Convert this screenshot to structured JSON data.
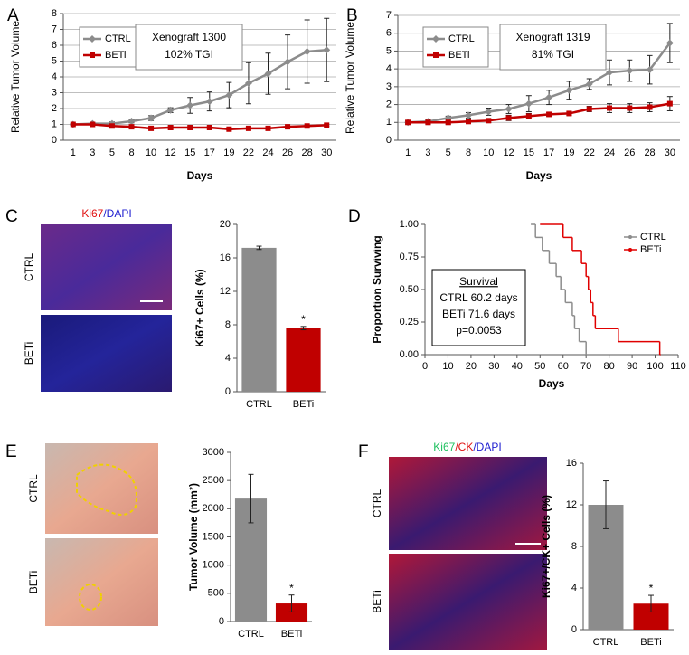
{
  "chart_data": [
    {
      "type": "line",
      "panel": "A",
      "ylabel": "Relative Tumor Volume",
      "xlabel": "Days",
      "categories": [
        "1",
        "3",
        "5",
        "8",
        "10",
        "12",
        "15",
        "17",
        "19",
        "22",
        "24",
        "26",
        "28",
        "30"
      ],
      "ylim": [
        0,
        8
      ],
      "yticks": [
        0,
        1,
        2,
        3,
        4,
        5,
        6,
        7,
        8
      ],
      "grid": true,
      "annotation": [
        "Xenograft 1300",
        "102% TGI"
      ],
      "series": [
        {
          "name": "CTRL",
          "color": "#8c8c8c",
          "marker": "diamond",
          "values": [
            1,
            1.05,
            1.05,
            1.2,
            1.4,
            1.9,
            2.2,
            2.45,
            2.85,
            3.6,
            4.2,
            4.95,
            5.6,
            5.7
          ],
          "errors": [
            0.05,
            0.05,
            0.1,
            0.1,
            0.15,
            0.15,
            0.5,
            0.6,
            0.8,
            1.3,
            1.3,
            1.7,
            2.0,
            2.0
          ]
        },
        {
          "name": "BETi",
          "color": "#c00000",
          "marker": "square",
          "values": [
            1,
            1,
            0.9,
            0.85,
            0.75,
            0.8,
            0.8,
            0.8,
            0.7,
            0.75,
            0.75,
            0.85,
            0.9,
            0.95
          ],
          "errors": [
            0.05,
            0.05,
            0.05,
            0.05,
            0.05,
            0.05,
            0.05,
            0.05,
            0.05,
            0.05,
            0.05,
            0.05,
            0.05,
            0.05
          ]
        }
      ]
    },
    {
      "type": "line",
      "panel": "B",
      "ylabel": "Relative Tumor Volume",
      "xlabel": "Days",
      "categories": [
        "1",
        "3",
        "5",
        "8",
        "10",
        "12",
        "15",
        "17",
        "19",
        "22",
        "24",
        "26",
        "28",
        "30"
      ],
      "ylim": [
        0,
        7
      ],
      "yticks": [
        0,
        1,
        2,
        3,
        4,
        5,
        6,
        7
      ],
      "grid": true,
      "annotation": [
        "Xenograft 1319",
        "81% TGI"
      ],
      "series": [
        {
          "name": "CTRL",
          "color": "#8c8c8c",
          "marker": "diamond",
          "values": [
            1,
            1.05,
            1.25,
            1.4,
            1.6,
            1.75,
            2.05,
            2.4,
            2.8,
            3.15,
            3.8,
            3.9,
            3.95,
            5.45
          ],
          "errors": [
            0.05,
            0.1,
            0.1,
            0.15,
            0.2,
            0.25,
            0.45,
            0.4,
            0.5,
            0.3,
            0.7,
            0.6,
            0.8,
            1.1
          ]
        },
        {
          "name": "BETi",
          "color": "#c00000",
          "marker": "square",
          "values": [
            1,
            1,
            1,
            1.05,
            1.1,
            1.25,
            1.35,
            1.45,
            1.5,
            1.75,
            1.8,
            1.8,
            1.85,
            2.05
          ],
          "errors": [
            0.1,
            0.1,
            0.1,
            0.1,
            0.1,
            0.15,
            0.15,
            0.1,
            0.1,
            0.15,
            0.25,
            0.25,
            0.25,
            0.4
          ]
        }
      ]
    },
    {
      "type": "bar",
      "panel": "C",
      "ylabel": "Ki67+ Cells (%)",
      "image_title": [
        {
          "text": "Ki67",
          "color": "#e01010"
        },
        {
          "text": "/DAPI",
          "color": "#2020d0"
        }
      ],
      "image_labels": [
        "CTRL",
        "BETi"
      ],
      "categories": [
        "CTRL",
        "BETi"
      ],
      "values": [
        17.2,
        7.6
      ],
      "errors": [
        0.2,
        0.2
      ],
      "colors": [
        "#8c8c8c",
        "#c00000"
      ],
      "star": "*",
      "ylim": [
        0,
        20
      ],
      "yticks": [
        0,
        4,
        8,
        12,
        16,
        20
      ]
    },
    {
      "type": "survival",
      "panel": "D",
      "ylabel": "Proportion Surviving",
      "xlabel": "Days",
      "xlim": [
        0,
        110
      ],
      "xticks": [
        0,
        10,
        20,
        30,
        40,
        50,
        60,
        70,
        80,
        90,
        100,
        110
      ],
      "ylim": [
        0,
        1
      ],
      "yticks": [
        {
          "value": 0,
          "label": "0.00"
        },
        {
          "value": 0.25,
          "label": "0.25"
        },
        {
          "value": 0.5,
          "label": "0.50"
        },
        {
          "value": 0.75,
          "label": "0.75"
        },
        {
          "value": 1,
          "label": "1.00"
        }
      ],
      "annotation": [
        "Survival",
        "CTRL  60.2 days",
        "BETi  71.6 days",
        "p=0.0053"
      ],
      "series": [
        {
          "name": "CTRL",
          "color": "#8c8c8c",
          "x": [
            46,
            48,
            51,
            54,
            57,
            59,
            61,
            64,
            65,
            67,
            70
          ],
          "values": [
            1,
            0.9,
            0.8,
            0.7,
            0.6,
            0.5,
            0.4,
            0.3,
            0.2,
            0.1,
            0
          ]
        },
        {
          "name": "BETi",
          "color": "#e00000",
          "x": [
            50,
            60,
            64,
            68,
            70,
            71,
            72,
            73,
            74,
            84,
            102
          ],
          "values": [
            1,
            0.9,
            0.8,
            0.7,
            0.6,
            0.5,
            0.4,
            0.3,
            0.2,
            0.1,
            0
          ]
        }
      ]
    },
    {
      "type": "bar",
      "panel": "E",
      "ylabel": "Tumor Volume (mm²)",
      "image_labels": [
        "CTRL",
        "BETi"
      ],
      "categories": [
        "CTRL",
        "BETi"
      ],
      "values": [
        2180,
        320
      ],
      "errors": [
        430,
        150
      ],
      "colors": [
        "#8c8c8c",
        "#c00000"
      ],
      "star": "*",
      "ylim": [
        0,
        3000
      ],
      "yticks": [
        0,
        500,
        1000,
        1500,
        2000,
        2500,
        3000
      ]
    },
    {
      "type": "bar",
      "panel": "F",
      "ylabel": "Ki67+/CK+ Cells (%)",
      "image_title": [
        {
          "text": "Ki67",
          "color": "#20c060"
        },
        {
          "text": "/CK",
          "color": "#e01010"
        },
        {
          "text": "/DAPI",
          "color": "#2020d0"
        }
      ],
      "image_labels": [
        "CTRL",
        "BETi"
      ],
      "categories": [
        "CTRL",
        "BETi"
      ],
      "values": [
        12.0,
        2.5
      ],
      "errors": [
        2.3,
        0.8
      ],
      "colors": [
        "#8c8c8c",
        "#c00000"
      ],
      "star": "*",
      "ylim": [
        0,
        16
      ],
      "yticks": [
        0,
        4,
        8,
        12,
        16
      ]
    }
  ]
}
